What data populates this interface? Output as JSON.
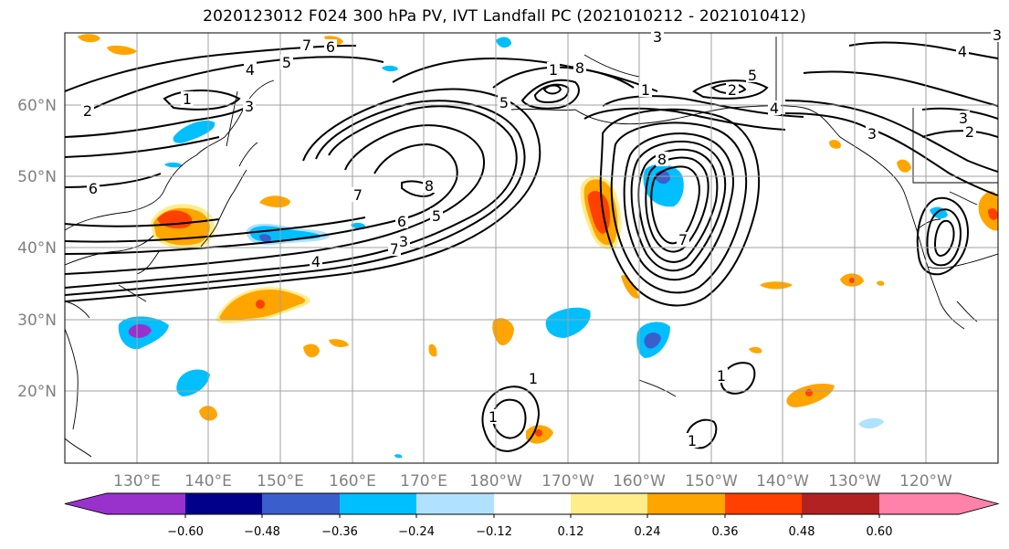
{
  "title": "2020123012 F024 300 hPa PV, IVT Landfall PC (2021010212 - 2021010412)",
  "map": {
    "lat_labels": [
      "60°N",
      "50°N",
      "40°N",
      "30°N",
      "20°N"
    ],
    "lon_labels": [
      "130°E",
      "140°E",
      "150°E",
      "160°E",
      "170°E",
      "180°W",
      "170°W",
      "160°W",
      "150°W",
      "140°W",
      "130°W",
      "120°W"
    ],
    "contour_labels": [
      "1",
      "2",
      "3",
      "4",
      "5",
      "6",
      "7",
      "8"
    ],
    "contour_color": "#000000",
    "land_outline_color": "#000000",
    "gridline_color": "#a0a0a0"
  },
  "colorbar": {
    "tick_labels": [
      "−0.60",
      "−0.48",
      "−0.36",
      "−0.24",
      "−0.12",
      "0.12",
      "0.24",
      "0.36",
      "0.48",
      "0.60"
    ],
    "colors": [
      "#9932cc",
      "#00008b",
      "#3a5fcd",
      "#00bfff",
      "#b0e2ff",
      "#ffffff",
      "#ffec8b",
      "#ffa500",
      "#ff4000",
      "#b22222",
      "#ff82ab"
    ],
    "extend": "both"
  }
}
